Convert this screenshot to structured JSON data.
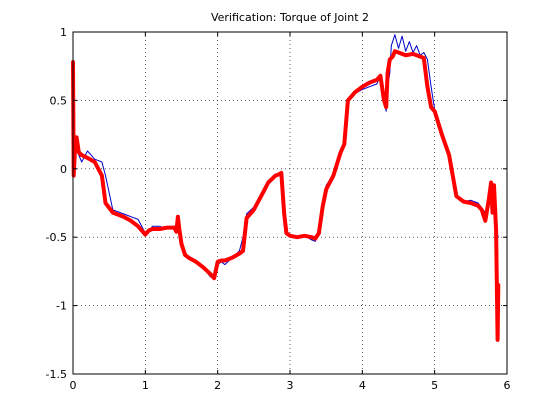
{
  "chart_data": {
    "type": "line",
    "title": "Verification: Torque of Joint 2",
    "xlabel": "",
    "ylabel": "",
    "xlim": [
      0,
      6
    ],
    "ylim": [
      -1.5,
      1
    ],
    "grid": true,
    "legend": "none",
    "x_ticks": [
      "0",
      "1",
      "2",
      "3",
      "4",
      "5",
      "6"
    ],
    "y_ticks": [
      "1",
      "0.5",
      "0",
      "-0.5",
      "-1",
      "-1.5"
    ],
    "x_tick_values": [
      0,
      1,
      2,
      3,
      4,
      5,
      6
    ],
    "y_tick_values": [
      1,
      0.5,
      0,
      -0.5,
      -1,
      -1.5
    ],
    "series": [
      {
        "color": "#0000cc",
        "style": "thin",
        "x": [
          0,
          0.02,
          0.05,
          0.08,
          0.12,
          0.2,
          0.3,
          0.4,
          0.45,
          0.55,
          0.7,
          0.8,
          0.9,
          1.0,
          1.05,
          1.1,
          1.2,
          1.3,
          1.4,
          1.45,
          1.5,
          1.55,
          1.6,
          1.7,
          1.8,
          1.9,
          1.95,
          2.0,
          2.05,
          2.1,
          2.2,
          2.3,
          2.35,
          2.4,
          2.5,
          2.6,
          2.7,
          2.8,
          2.85,
          2.88,
          2.92,
          2.95,
          3.0,
          3.1,
          3.2,
          3.3,
          3.35,
          3.4,
          3.45,
          3.5,
          3.6,
          3.7,
          3.75,
          3.8,
          3.85,
          3.9,
          4.0,
          4.1,
          4.2,
          4.25,
          4.3,
          4.33,
          4.35,
          4.38,
          4.4,
          4.45,
          4.5,
          4.55,
          4.6,
          4.65,
          4.7,
          4.75,
          4.8,
          4.85,
          4.9,
          4.95,
          5.0,
          5.1,
          5.2,
          5.3,
          5.4,
          5.5,
          5.6,
          5.7,
          5.75,
          5.8,
          5.85,
          5.88
        ],
        "y": [
          0.55,
          -0.02,
          0.2,
          0.1,
          0.05,
          0.13,
          0.07,
          0.05,
          -0.05,
          -0.3,
          -0.33,
          -0.35,
          -0.37,
          -0.47,
          -0.45,
          -0.42,
          -0.42,
          -0.44,
          -0.43,
          -0.38,
          -0.55,
          -0.64,
          -0.66,
          -0.67,
          -0.72,
          -0.79,
          -0.8,
          -0.7,
          -0.68,
          -0.7,
          -0.65,
          -0.6,
          -0.5,
          -0.33,
          -0.28,
          -0.18,
          -0.1,
          -0.06,
          -0.04,
          -0.02,
          -0.36,
          -0.48,
          -0.49,
          -0.5,
          -0.49,
          -0.52,
          -0.53,
          -0.48,
          -0.25,
          -0.12,
          -0.05,
          0.12,
          0.2,
          0.5,
          0.52,
          0.55,
          0.58,
          0.6,
          0.62,
          0.68,
          0.5,
          0.42,
          0.6,
          0.7,
          0.9,
          0.98,
          0.88,
          0.97,
          0.86,
          0.93,
          0.85,
          0.9,
          0.83,
          0.85,
          0.8,
          0.6,
          0.43,
          0.28,
          0.12,
          -0.2,
          -0.24,
          -0.23,
          -0.25,
          -0.32,
          -0.25,
          -0.24,
          -0.45,
          -0.5
        ]
      },
      {
        "color": "#ff0000",
        "style": "thick",
        "x": [
          0,
          0.01,
          0.03,
          0.05,
          0.08,
          0.12,
          0.2,
          0.3,
          0.4,
          0.45,
          0.55,
          0.7,
          0.8,
          0.9,
          1.0,
          1.05,
          1.1,
          1.2,
          1.3,
          1.4,
          1.43,
          1.45,
          1.47,
          1.5,
          1.55,
          1.6,
          1.7,
          1.8,
          1.9,
          1.95,
          2.0,
          2.05,
          2.1,
          2.2,
          2.3,
          2.35,
          2.4,
          2.5,
          2.6,
          2.7,
          2.8,
          2.85,
          2.88,
          2.92,
          2.95,
          3.0,
          3.1,
          3.2,
          3.3,
          3.35,
          3.4,
          3.45,
          3.5,
          3.6,
          3.7,
          3.75,
          3.8,
          3.85,
          3.9,
          4.0,
          4.1,
          4.2,
          4.25,
          4.3,
          4.33,
          4.35,
          4.38,
          4.42,
          4.45,
          4.5,
          4.6,
          4.7,
          4.8,
          4.85,
          4.9,
          4.95,
          5.0,
          5.1,
          5.2,
          5.3,
          5.4,
          5.5,
          5.6,
          5.65,
          5.7,
          5.75,
          5.78,
          5.8,
          5.82,
          5.85,
          5.87,
          5.88
        ],
        "y": [
          0.78,
          -0.05,
          0.18,
          0.23,
          0.12,
          0.1,
          0.08,
          0.05,
          -0.05,
          -0.25,
          -0.32,
          -0.35,
          -0.38,
          -0.42,
          -0.48,
          -0.45,
          -0.44,
          -0.44,
          -0.43,
          -0.43,
          -0.46,
          -0.35,
          -0.44,
          -0.55,
          -0.63,
          -0.65,
          -0.68,
          -0.72,
          -0.77,
          -0.8,
          -0.68,
          -0.67,
          -0.67,
          -0.65,
          -0.62,
          -0.6,
          -0.36,
          -0.3,
          -0.2,
          -0.1,
          -0.05,
          -0.04,
          -0.03,
          -0.33,
          -0.47,
          -0.49,
          -0.5,
          -0.49,
          -0.5,
          -0.51,
          -0.47,
          -0.28,
          -0.15,
          -0.05,
          0.12,
          0.18,
          0.5,
          0.53,
          0.56,
          0.6,
          0.63,
          0.65,
          0.68,
          0.5,
          0.45,
          0.7,
          0.8,
          0.82,
          0.86,
          0.85,
          0.83,
          0.84,
          0.82,
          0.81,
          0.6,
          0.45,
          0.42,
          0.25,
          0.1,
          -0.2,
          -0.24,
          -0.25,
          -0.27,
          -0.3,
          -0.38,
          -0.22,
          -0.1,
          -0.32,
          -0.12,
          -0.45,
          -1.25,
          -0.85
        ]
      }
    ]
  }
}
